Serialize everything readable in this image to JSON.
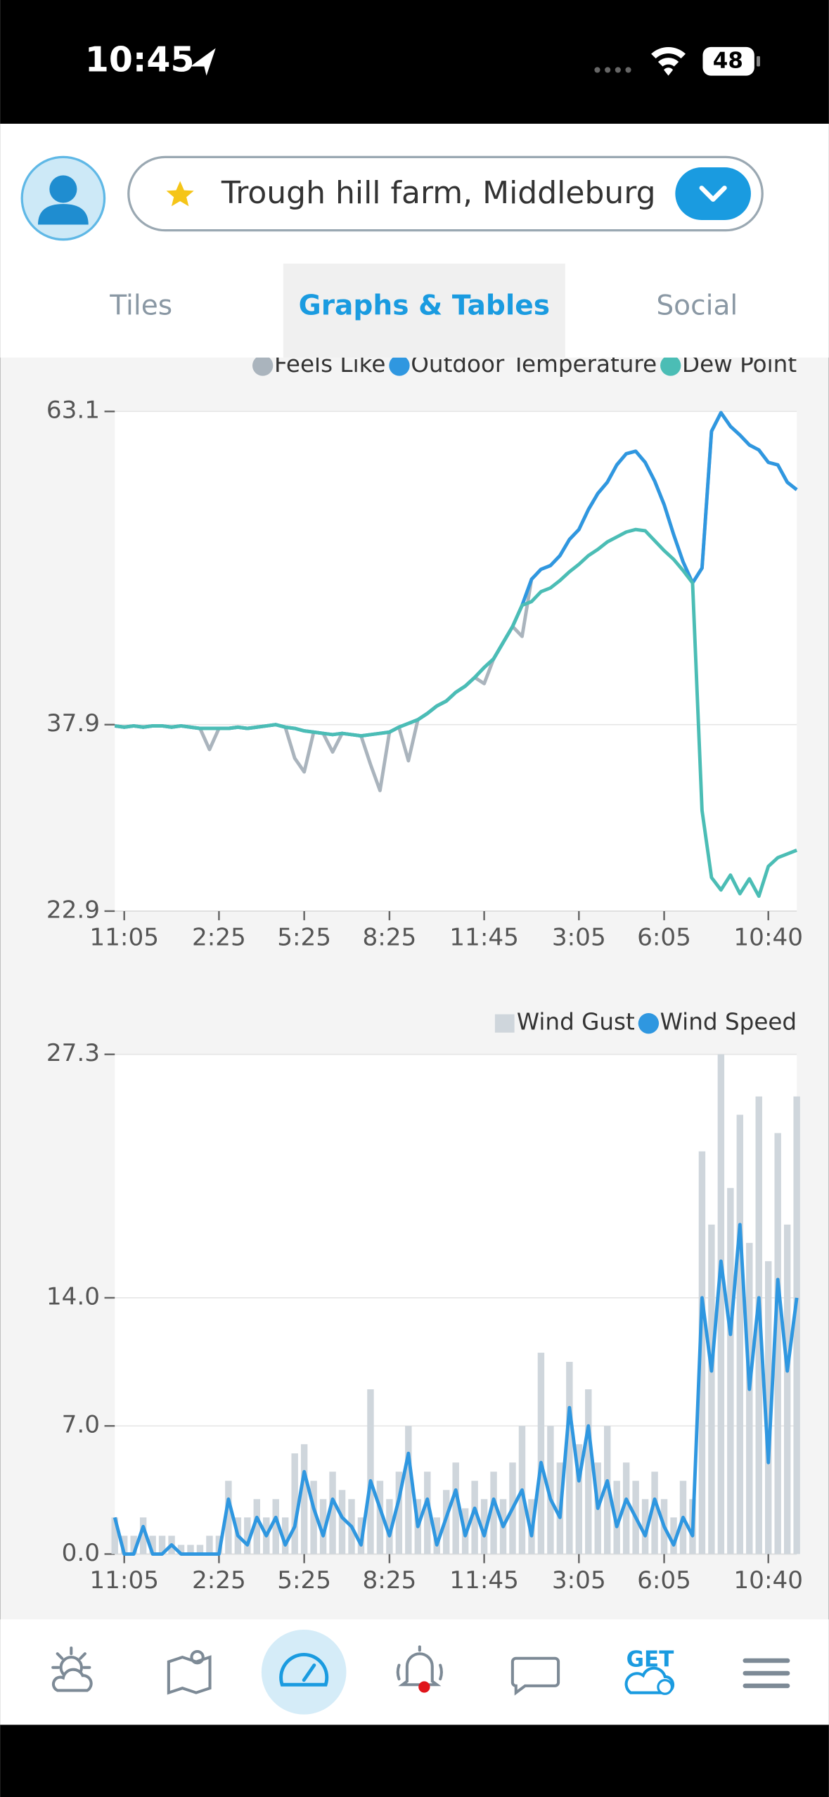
{
  "status_bar": {
    "time": "10:45",
    "battery": "48"
  },
  "header": {
    "location": "Trough hill farm, Middleburg"
  },
  "tabs": {
    "items": [
      "Tiles",
      "Graphs & Tables",
      "Social"
    ],
    "active": 1
  },
  "nav": {
    "get": "GET"
  },
  "chart_data": [
    {
      "type": "line",
      "legend": "top-right",
      "grid": true,
      "ylim": [
        22.9,
        63.1
      ],
      "yticks": [
        22.9,
        37.9,
        63.1
      ],
      "categories": [
        null,
        "11:05",
        null,
        null,
        null,
        null,
        null,
        null,
        null,
        null,
        null,
        "2:25",
        null,
        null,
        null,
        null,
        null,
        null,
        null,
        null,
        "5:25",
        null,
        null,
        null,
        null,
        null,
        null,
        null,
        null,
        "8:25",
        null,
        null,
        null,
        null,
        null,
        null,
        null,
        null,
        null,
        "11:45",
        null,
        null,
        null,
        null,
        null,
        null,
        null,
        null,
        null,
        "3:05",
        null,
        null,
        null,
        null,
        null,
        null,
        null,
        null,
        "6:05",
        null,
        null,
        null,
        null,
        null,
        null,
        null,
        null,
        null,
        null,
        "10:40",
        null,
        null,
        null
      ],
      "series": [
        {
          "name": "Feels Like",
          "color": "#aab4bd",
          "marker": "circle",
          "values": [
            37.8,
            37.7,
            37.8,
            37.7,
            37.8,
            37.8,
            37.7,
            37.8,
            37.7,
            37.6,
            35.9,
            37.6,
            37.6,
            37.7,
            37.6,
            37.7,
            37.8,
            37.9,
            37.7,
            35.2,
            34.1,
            37.3,
            37.2,
            35.7,
            37.2,
            37.1,
            37.0,
            34.7,
            32.6,
            37.3,
            37.7,
            35.0,
            38.3,
            38.8,
            39.4,
            39.8,
            40.5,
            41.0,
            41.7,
            41.2,
            43.2,
            44.5,
            45.8,
            45.0,
            49.6,
            50.4,
            50.7,
            51.5,
            52.8,
            53.6,
            55.2,
            56.5,
            57.4,
            58.8,
            59.7,
            59.9,
            59.0,
            57.5,
            55.6,
            53.2,
            51.0,
            49.3,
            50.5,
            61.5,
            63.0,
            61.9,
            61.2,
            60.4,
            60.0,
            59.0,
            58.8,
            57.4,
            56.8
          ]
        },
        {
          "name": "Outdoor Temperature",
          "color": "#2f97e0",
          "marker": "circle",
          "values": [
            37.8,
            37.7,
            37.8,
            37.7,
            37.8,
            37.8,
            37.7,
            37.8,
            37.7,
            37.6,
            37.6,
            37.6,
            37.6,
            37.7,
            37.6,
            37.7,
            37.8,
            37.9,
            37.7,
            37.6,
            37.4,
            37.3,
            37.2,
            37.1,
            37.2,
            37.1,
            37.0,
            37.1,
            37.2,
            37.3,
            37.7,
            38.0,
            38.3,
            38.8,
            39.4,
            39.8,
            40.5,
            41.0,
            41.7,
            42.5,
            43.2,
            44.5,
            45.8,
            47.5,
            49.6,
            50.4,
            50.7,
            51.5,
            52.8,
            53.6,
            55.2,
            56.5,
            57.4,
            58.8,
            59.7,
            59.9,
            59.0,
            57.5,
            55.6,
            53.2,
            51.0,
            49.3,
            50.5,
            61.5,
            63.0,
            61.9,
            61.2,
            60.4,
            60.0,
            59.0,
            58.8,
            57.4,
            56.8
          ]
        },
        {
          "name": "Dew Point",
          "color": "#4bbdb5",
          "marker": "circle",
          "values": [
            37.8,
            37.7,
            37.8,
            37.7,
            37.8,
            37.8,
            37.7,
            37.8,
            37.7,
            37.6,
            37.6,
            37.6,
            37.6,
            37.7,
            37.6,
            37.7,
            37.8,
            37.9,
            37.7,
            37.6,
            37.4,
            37.3,
            37.2,
            37.1,
            37.2,
            37.1,
            37.0,
            37.1,
            37.2,
            37.3,
            37.7,
            38.0,
            38.3,
            38.8,
            39.4,
            39.8,
            40.5,
            41.0,
            41.7,
            42.5,
            43.2,
            44.5,
            45.8,
            47.5,
            47.8,
            48.6,
            48.9,
            49.5,
            50.2,
            50.8,
            51.5,
            52.0,
            52.6,
            53.0,
            53.4,
            53.6,
            53.5,
            52.7,
            51.9,
            51.2,
            50.3,
            49.3,
            31.0,
            25.6,
            24.6,
            25.8,
            24.3,
            25.5,
            24.1,
            26.5,
            27.2,
            27.5,
            27.8
          ]
        }
      ]
    },
    {
      "type": "bar",
      "legend": "top-right",
      "grid": true,
      "ylim": [
        0,
        27.3
      ],
      "yticks": [
        {
          "value": 0,
          "label": "0.0"
        },
        {
          "value": 7,
          "label": "7.0"
        },
        {
          "value": 14,
          "label": "14.0"
        },
        27.3
      ],
      "categories": [
        null,
        "11:05",
        null,
        null,
        null,
        null,
        null,
        null,
        null,
        null,
        null,
        "2:25",
        null,
        null,
        null,
        null,
        null,
        null,
        null,
        null,
        "5:25",
        null,
        null,
        null,
        null,
        null,
        null,
        null,
        null,
        "8:25",
        null,
        null,
        null,
        null,
        null,
        null,
        null,
        null,
        null,
        "11:45",
        null,
        null,
        null,
        null,
        null,
        null,
        null,
        null,
        null,
        "3:05",
        null,
        null,
        null,
        null,
        null,
        null,
        null,
        null,
        "6:05",
        null,
        null,
        null,
        null,
        null,
        null,
        null,
        null,
        null,
        null,
        "10:40",
        null,
        null,
        null
      ],
      "series": [
        {
          "name": "Wind Gust",
          "color": "#cfd6dc",
          "type": "bar",
          "marker": "square",
          "values": [
            2,
            1,
            1,
            2,
            1,
            1,
            1,
            0.5,
            0.5,
            0.5,
            1,
            1,
            4,
            2,
            2,
            3,
            2,
            3,
            2,
            5.5,
            6,
            4,
            3,
            4.5,
            3.5,
            3,
            2,
            9,
            4,
            3,
            4.5,
            7,
            3,
            4.5,
            2,
            3.5,
            5,
            2.5,
            4,
            3,
            4.5,
            3,
            5,
            7,
            3,
            11,
            7,
            5,
            10.5,
            6,
            9,
            5,
            7,
            4,
            5,
            4,
            3,
            4.5,
            3,
            2,
            4,
            3,
            22,
            18,
            27.3,
            20,
            24,
            17,
            25,
            16,
            23,
            18,
            25
          ]
        },
        {
          "name": "Wind Speed",
          "color": "#2f97e0",
          "type": "line",
          "marker": "circle",
          "values": [
            2,
            0,
            0,
            1.5,
            0,
            0,
            0.5,
            0,
            0,
            0,
            0,
            0,
            3,
            1,
            0.5,
            2,
            1,
            2,
            0.5,
            1.5,
            4.5,
            2.5,
            1,
            3,
            2,
            1.5,
            0.5,
            4,
            2.5,
            1,
            3,
            5.5,
            1.5,
            3,
            0.5,
            2,
            3.5,
            1,
            2.5,
            1,
            3,
            1.5,
            2.5,
            3.5,
            1,
            5,
            3,
            2,
            8,
            4,
            7,
            2.5,
            4,
            1.5,
            3,
            2,
            1,
            3,
            1.5,
            0.5,
            2,
            1,
            14,
            10,
            16,
            12,
            18,
            9,
            14,
            5,
            15,
            10,
            14
          ]
        }
      ]
    }
  ]
}
